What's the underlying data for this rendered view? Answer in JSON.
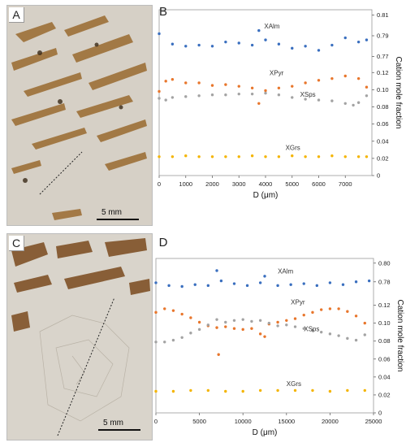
{
  "panels": [
    {
      "letter": "A",
      "scale_label": "5 mm"
    },
    {
      "letter": "C",
      "scale_label": "5 mm"
    }
  ],
  "colors": {
    "XAlm": "#3a6fbf",
    "XPyr": "#e8762c",
    "XSps": "#a3a3a3",
    "XGrs": "#f4b400",
    "photo_bg": "#cfc9bf",
    "grain_brown": "#9a6a2f"
  },
  "chart_data": [
    {
      "panel_label": "B",
      "type": "scatter",
      "xlabel": "D (μm)",
      "ylabel": "Cation mole fraction",
      "xlim": [
        0,
        8000
      ],
      "x_ticks": [
        0,
        1000,
        2000,
        3000,
        4000,
        5000,
        6000,
        7000
      ],
      "right_ticks": [
        {
          "label": "0.81",
          "y": 0.81
        },
        {
          "label": "0.79",
          "y": 0.79
        },
        {
          "label": "0.77",
          "y": 0.77
        },
        {
          "label": "0.12",
          "y": 0.12
        },
        {
          "label": "0.10",
          "y": 0.1
        },
        {
          "label": "0.08",
          "y": 0.08
        },
        {
          "label": "0.06",
          "y": 0.06
        },
        {
          "label": "0.04",
          "y": 0.04
        },
        {
          "label": "0.02",
          "y": 0.02
        },
        {
          "label": "0",
          "y": 0.0
        }
      ],
      "grid": false,
      "series": [
        {
          "name": "XAlm",
          "label_x": 3950,
          "label_y": 0.797,
          "x": [
            0,
            500,
            1000,
            1500,
            2000,
            2500,
            3000,
            3500,
            3750,
            4000,
            4500,
            5000,
            5500,
            6000,
            6500,
            7000,
            7500,
            7800
          ],
          "y": [
            0.792,
            0.782,
            0.78,
            0.781,
            0.78,
            0.784,
            0.783,
            0.781,
            0.795,
            0.786,
            0.782,
            0.778,
            0.78,
            0.776,
            0.781,
            0.788,
            0.784,
            0.786
          ]
        },
        {
          "name": "XPyr",
          "label_x": 4150,
          "label_y": 0.117,
          "x": [
            0,
            250,
            500,
            1000,
            1500,
            2000,
            2500,
            3000,
            3500,
            3750,
            4000,
            4500,
            5000,
            5500,
            6000,
            6500,
            7000,
            7500,
            7800
          ],
          "y": [
            0.098,
            0.11,
            0.112,
            0.108,
            0.108,
            0.105,
            0.106,
            0.104,
            0.102,
            0.084,
            0.099,
            0.102,
            0.104,
            0.108,
            0.111,
            0.113,
            0.116,
            0.113,
            0.103
          ]
        },
        {
          "name": "XSps",
          "label_x": 5300,
          "label_y": 0.092,
          "x": [
            0,
            250,
            500,
            1000,
            1500,
            2000,
            2500,
            3000,
            3500,
            4000,
            4500,
            5000,
            5500,
            6000,
            6500,
            7000,
            7300,
            7500,
            7800
          ],
          "y": [
            0.09,
            0.088,
            0.091,
            0.092,
            0.093,
            0.094,
            0.094,
            0.095,
            0.095,
            0.096,
            0.094,
            0.091,
            0.089,
            0.088,
            0.087,
            0.084,
            0.082,
            0.085,
            0.093
          ]
        },
        {
          "name": "XGrs",
          "label_x": 4750,
          "label_y": 0.03,
          "x": [
            0,
            500,
            1000,
            1500,
            2000,
            2500,
            3000,
            3500,
            4000,
            4500,
            5000,
            5500,
            6000,
            6500,
            7000,
            7500,
            7800
          ],
          "y": [
            0.022,
            0.022,
            0.023,
            0.022,
            0.022,
            0.022,
            0.022,
            0.023,
            0.022,
            0.022,
            0.023,
            0.022,
            0.022,
            0.023,
            0.022,
            0.022,
            0.022
          ]
        }
      ]
    },
    {
      "panel_label": "D",
      "type": "scatter",
      "xlabel": "D (μm)",
      "ylabel": "Cation mole fraction",
      "xlim": [
        0,
        25000
      ],
      "x_ticks": [
        0,
        5000,
        10000,
        15000,
        20000,
        25000
      ],
      "right_ticks": [
        {
          "label": "0.80",
          "y": 0.8
        },
        {
          "label": "0.78",
          "y": 0.78
        },
        {
          "label": "0.12",
          "y": 0.12
        },
        {
          "label": "0.10",
          "y": 0.1
        },
        {
          "label": "0.08",
          "y": 0.08
        },
        {
          "label": "0.06",
          "y": 0.06
        },
        {
          "label": "0.04",
          "y": 0.04
        },
        {
          "label": "0.02",
          "y": 0.02
        },
        {
          "label": "0",
          "y": 0.0
        }
      ],
      "grid": false,
      "series": [
        {
          "name": "XAlm",
          "label_x": 14000,
          "label_y": 0.789,
          "x": [
            0,
            1500,
            3000,
            4500,
            6000,
            7000,
            7500,
            9000,
            10500,
            12000,
            12500,
            14000,
            15500,
            17000,
            18500,
            20000,
            21500,
            23000,
            24500
          ],
          "y": [
            0.779,
            0.776,
            0.775,
            0.777,
            0.776,
            0.792,
            0.781,
            0.778,
            0.776,
            0.779,
            0.786,
            0.776,
            0.777,
            0.778,
            0.776,
            0.779,
            0.777,
            0.78,
            0.781
          ]
        },
        {
          "name": "XPyr",
          "label_x": 15500,
          "label_y": 0.121,
          "x": [
            0,
            1000,
            2000,
            3000,
            4000,
            5000,
            6000,
            7000,
            7200,
            8000,
            9000,
            10000,
            11000,
            12000,
            12500,
            13000,
            14000,
            15000,
            16000,
            17000,
            18000,
            19000,
            20000,
            21000,
            22000,
            23000,
            24000
          ],
          "y": [
            0.112,
            0.116,
            0.114,
            0.11,
            0.106,
            0.101,
            0.097,
            0.095,
            0.065,
            0.096,
            0.094,
            0.093,
            0.094,
            0.088,
            0.085,
            0.099,
            0.101,
            0.103,
            0.105,
            0.109,
            0.112,
            0.115,
            0.116,
            0.116,
            0.113,
            0.108,
            0.1
          ]
        },
        {
          "name": "XSps",
          "label_x": 17000,
          "label_y": 0.091,
          "x": [
            0,
            1000,
            2000,
            3000,
            4000,
            5000,
            6000,
            7000,
            8000,
            9000,
            10000,
            11000,
            12000,
            13000,
            14000,
            15000,
            16000,
            17000,
            18000,
            19000,
            20000,
            21000,
            22000,
            23000,
            24000
          ],
          "y": [
            0.079,
            0.079,
            0.081,
            0.084,
            0.089,
            0.093,
            0.098,
            0.104,
            0.101,
            0.103,
            0.104,
            0.102,
            0.103,
            0.1,
            0.097,
            0.098,
            0.096,
            0.094,
            0.092,
            0.09,
            0.088,
            0.086,
            0.083,
            0.081,
            0.087
          ]
        },
        {
          "name": "XGrs",
          "label_x": 15000,
          "label_y": 0.03,
          "x": [
            0,
            2000,
            4000,
            6000,
            8000,
            10000,
            12000,
            14000,
            16000,
            18000,
            20000,
            22000,
            24000
          ],
          "y": [
            0.024,
            0.024,
            0.025,
            0.025,
            0.024,
            0.024,
            0.025,
            0.025,
            0.025,
            0.025,
            0.024,
            0.025,
            0.025
          ]
        }
      ]
    }
  ]
}
